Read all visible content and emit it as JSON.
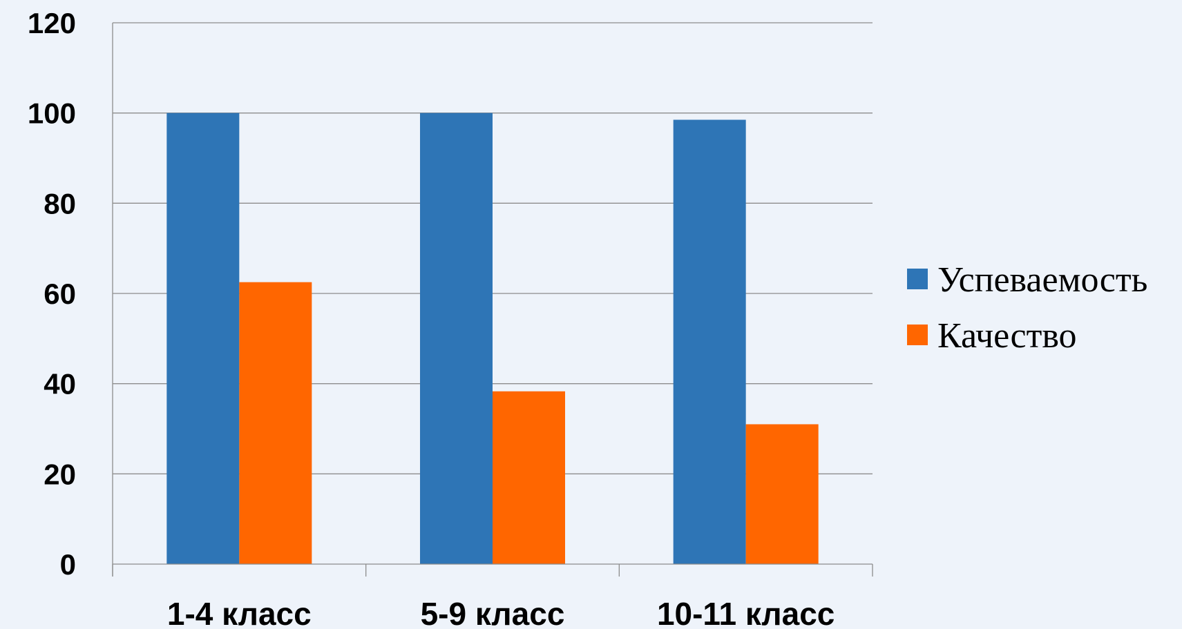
{
  "chart_data": {
    "type": "bar",
    "categories": [
      "1-4 класс",
      "5-9 класс",
      "10-11 класс"
    ],
    "series": [
      {
        "name": "Успеваемость",
        "values": [
          100,
          100,
          98.5
        ],
        "color": "#2e75b6"
      },
      {
        "name": "Качество",
        "values": [
          62.5,
          38.3,
          31
        ],
        "color": "#ff6600"
      }
    ],
    "ylim": [
      0,
      120
    ],
    "yticks": [
      0,
      20,
      40,
      60,
      80,
      100,
      120
    ],
    "grid": true,
    "legend_position": "right"
  }
}
